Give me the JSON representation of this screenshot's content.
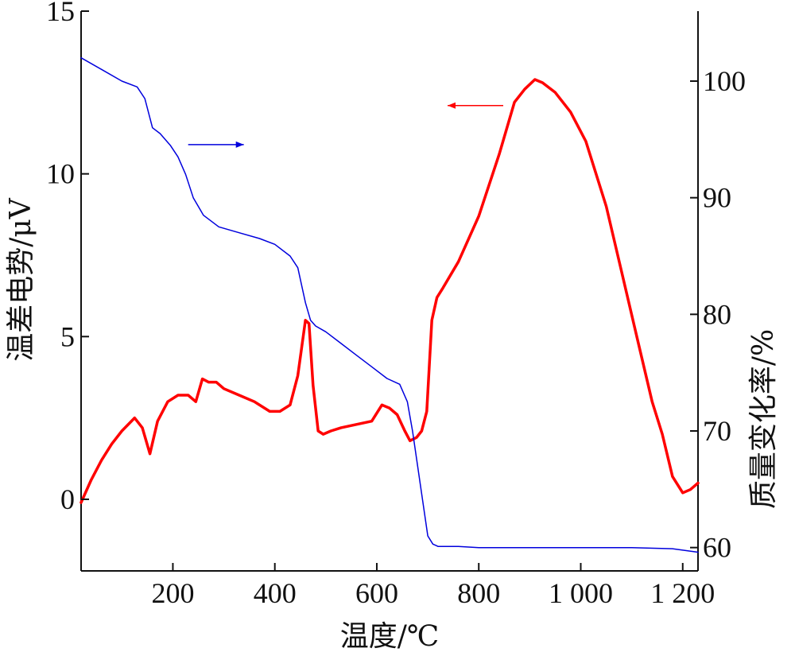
{
  "chart_data": {
    "type": "line",
    "xlabel": "温度/℃",
    "ylabel_left": "温差电势/μV",
    "ylabel_right": "质量变化率/%",
    "xlim": [
      20,
      1230
    ],
    "ylim_left": [
      -2.2,
      15
    ],
    "ylim_right": [
      58,
      106
    ],
    "x_ticks": [
      {
        "value": 200,
        "label": "200"
      },
      {
        "value": 400,
        "label": "400"
      },
      {
        "value": 600,
        "label": "600"
      },
      {
        "value": 800,
        "label": "800"
      },
      {
        "value": 1000,
        "label": "1 000"
      },
      {
        "value": 1200,
        "label": "1 200"
      }
    ],
    "y_left_ticks": [
      {
        "value": 0,
        "label": "0"
      },
      {
        "value": 5,
        "label": "5"
      },
      {
        "value": 10,
        "label": "10"
      },
      {
        "value": 15,
        "label": "15"
      }
    ],
    "y_right_ticks": [
      {
        "value": 60,
        "label": "60"
      },
      {
        "value": 70,
        "label": "70"
      },
      {
        "value": 80,
        "label": "80"
      },
      {
        "value": 90,
        "label": "90"
      },
      {
        "value": 100,
        "label": "100"
      }
    ],
    "series": [
      {
        "axis": "left",
        "color": "#ff0000",
        "x": [
          20,
          40,
          60,
          80,
          100,
          125,
          140,
          155,
          170,
          190,
          210,
          230,
          245,
          258,
          270,
          285,
          300,
          330,
          360,
          390,
          410,
          430,
          445,
          460,
          467,
          475,
          485,
          495,
          510,
          530,
          560,
          590,
          610,
          625,
          640,
          655,
          665,
          678,
          688,
          698,
          708,
          718,
          730,
          760,
          800,
          840,
          870,
          890,
          910,
          925,
          950,
          980,
          1010,
          1050,
          1080,
          1110,
          1140,
          1160,
          1180,
          1200,
          1215,
          1230
        ],
        "y": [
          -0.1,
          0.6,
          1.2,
          1.7,
          2.1,
          2.5,
          2.2,
          1.4,
          2.4,
          3.0,
          3.2,
          3.2,
          3.0,
          3.7,
          3.6,
          3.6,
          3.4,
          3.2,
          3.0,
          2.7,
          2.7,
          2.9,
          3.8,
          5.5,
          5.4,
          3.5,
          2.1,
          2.0,
          2.1,
          2.2,
          2.3,
          2.4,
          2.9,
          2.8,
          2.6,
          2.1,
          1.8,
          1.9,
          2.1,
          2.7,
          5.5,
          6.2,
          6.5,
          7.3,
          8.7,
          10.6,
          12.2,
          12.6,
          12.9,
          12.8,
          12.5,
          11.9,
          11.0,
          9.0,
          7.0,
          5.0,
          3.0,
          2.0,
          0.7,
          0.2,
          0.3,
          0.5
        ]
      },
      {
        "axis": "right",
        "color": "#0000dd",
        "x": [
          20,
          60,
          100,
          130,
          145,
          160,
          175,
          195,
          210,
          225,
          240,
          260,
          290,
          330,
          370,
          400,
          430,
          445,
          460,
          470,
          480,
          500,
          530,
          560,
          590,
          620,
          645,
          660,
          670,
          680,
          690,
          700,
          710,
          715,
          720,
          760,
          800,
          900,
          1000,
          1100,
          1180,
          1230
        ],
        "y": [
          102,
          101,
          100,
          99.5,
          98.5,
          96,
          95.5,
          94.5,
          93.5,
          92,
          90,
          88.5,
          87.5,
          87,
          86.5,
          86,
          85,
          84,
          81,
          79.5,
          79,
          78.5,
          77.5,
          76.5,
          75.5,
          74.5,
          74,
          72.5,
          70,
          67,
          64,
          61,
          60.3,
          60.2,
          60.1,
          60.1,
          60.0,
          60.0,
          60.0,
          60.0,
          59.9,
          59.6
        ]
      }
    ],
    "annotations": [
      {
        "type": "arrow",
        "points_to": "right",
        "color": "#0000dd",
        "at": {
          "x": 230,
          "y": 10.9
        }
      },
      {
        "type": "arrow",
        "points_to": "left",
        "color": "#ff0000",
        "at": {
          "x": 848,
          "y": 12.1
        }
      }
    ]
  },
  "ui": {
    "xlabel": "温度/℃",
    "ylabel_left": "温差电势/μV",
    "ylabel_right": "质量变化率/%"
  }
}
